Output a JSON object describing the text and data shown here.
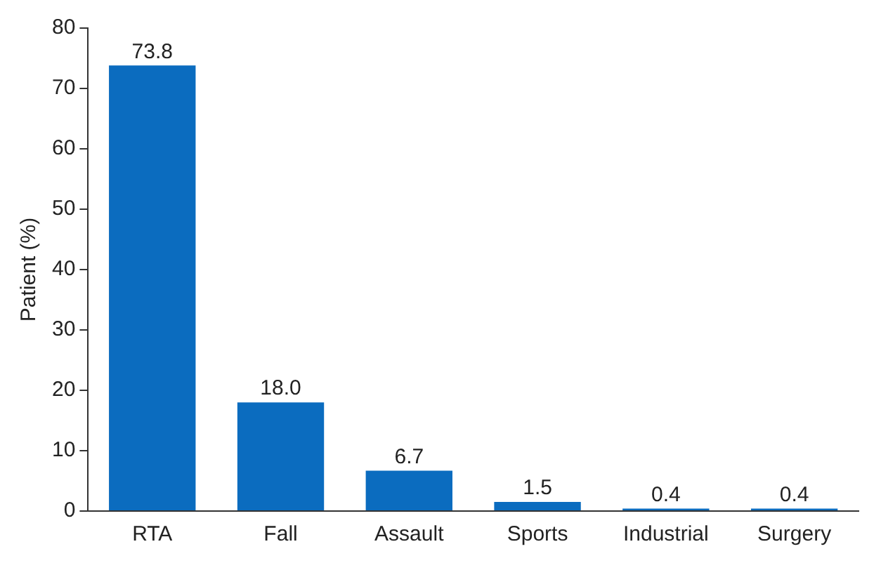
{
  "chart_data": {
    "type": "bar",
    "ylabel": "Patient (%)",
    "categories": [
      "RTA",
      "Fall",
      "Assault",
      "Sports",
      "Industrial",
      "Surgery"
    ],
    "values": [
      73.8,
      18.0,
      6.7,
      1.5,
      0.4,
      0.4
    ],
    "value_labels": [
      "73.8",
      "18.0",
      "6.7",
      "1.5",
      "0.4",
      "0.4"
    ],
    "color": "#0b6cbf",
    "ylim": [
      0,
      80
    ],
    "yticks": [
      0,
      10,
      20,
      30,
      40,
      50,
      60,
      70,
      80
    ],
    "grid": false,
    "legend": false
  }
}
